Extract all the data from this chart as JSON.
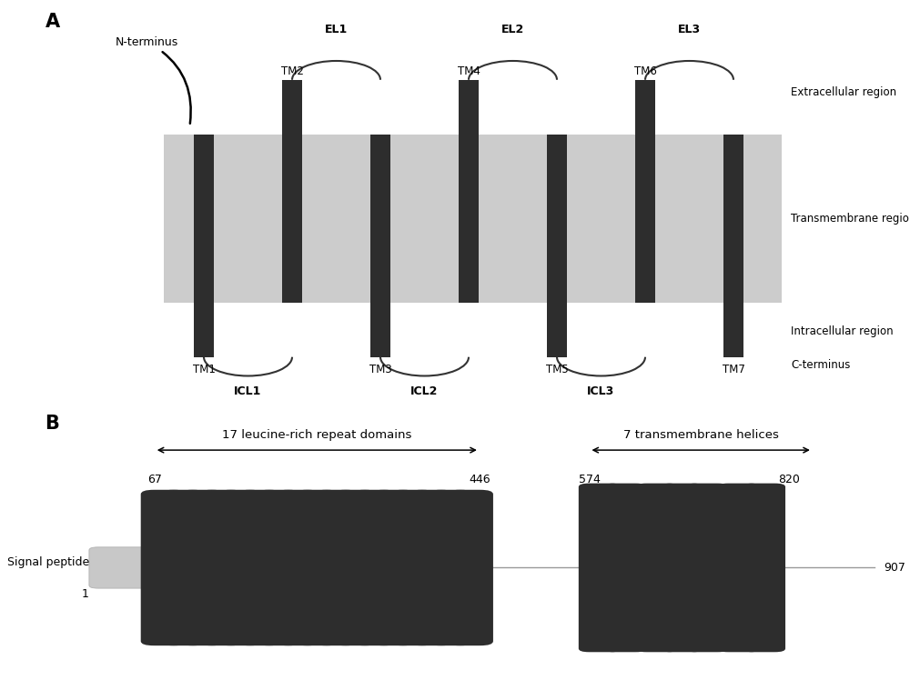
{
  "tm_color": "#2d2d2d",
  "membrane_color": "#cccccc",
  "signal_peptide_color": "#c0c0c0",
  "panel_A": {
    "label": "A",
    "extracellular_region_label": "Extracellular region",
    "transmembrane_region_label": "Transmembrane region",
    "intracellular_region_label": "Intracellular region",
    "c_terminus_label": "C-terminus",
    "n_terminus_label": "N-terminus",
    "el_labels": [
      "EL1",
      "EL2",
      "EL3"
    ],
    "icl_labels": [
      "ICL1",
      "ICL2",
      "ICL3"
    ],
    "tm_top_labels": [
      "TM2",
      "TM4",
      "TM6"
    ],
    "tm_bot_labels": [
      "TM1",
      "TM3",
      "TM5",
      "TM7"
    ]
  },
  "panel_B": {
    "label": "B",
    "signal_peptide_label": "Signal peptide",
    "lrr_label": "17 leucine-rich repeat domains",
    "tm_label": "7 transmembrane helices",
    "pos_1": "1",
    "pos_67": "67",
    "pos_446": "446",
    "pos_574": "574",
    "pos_820": "820",
    "pos_907": "907"
  }
}
